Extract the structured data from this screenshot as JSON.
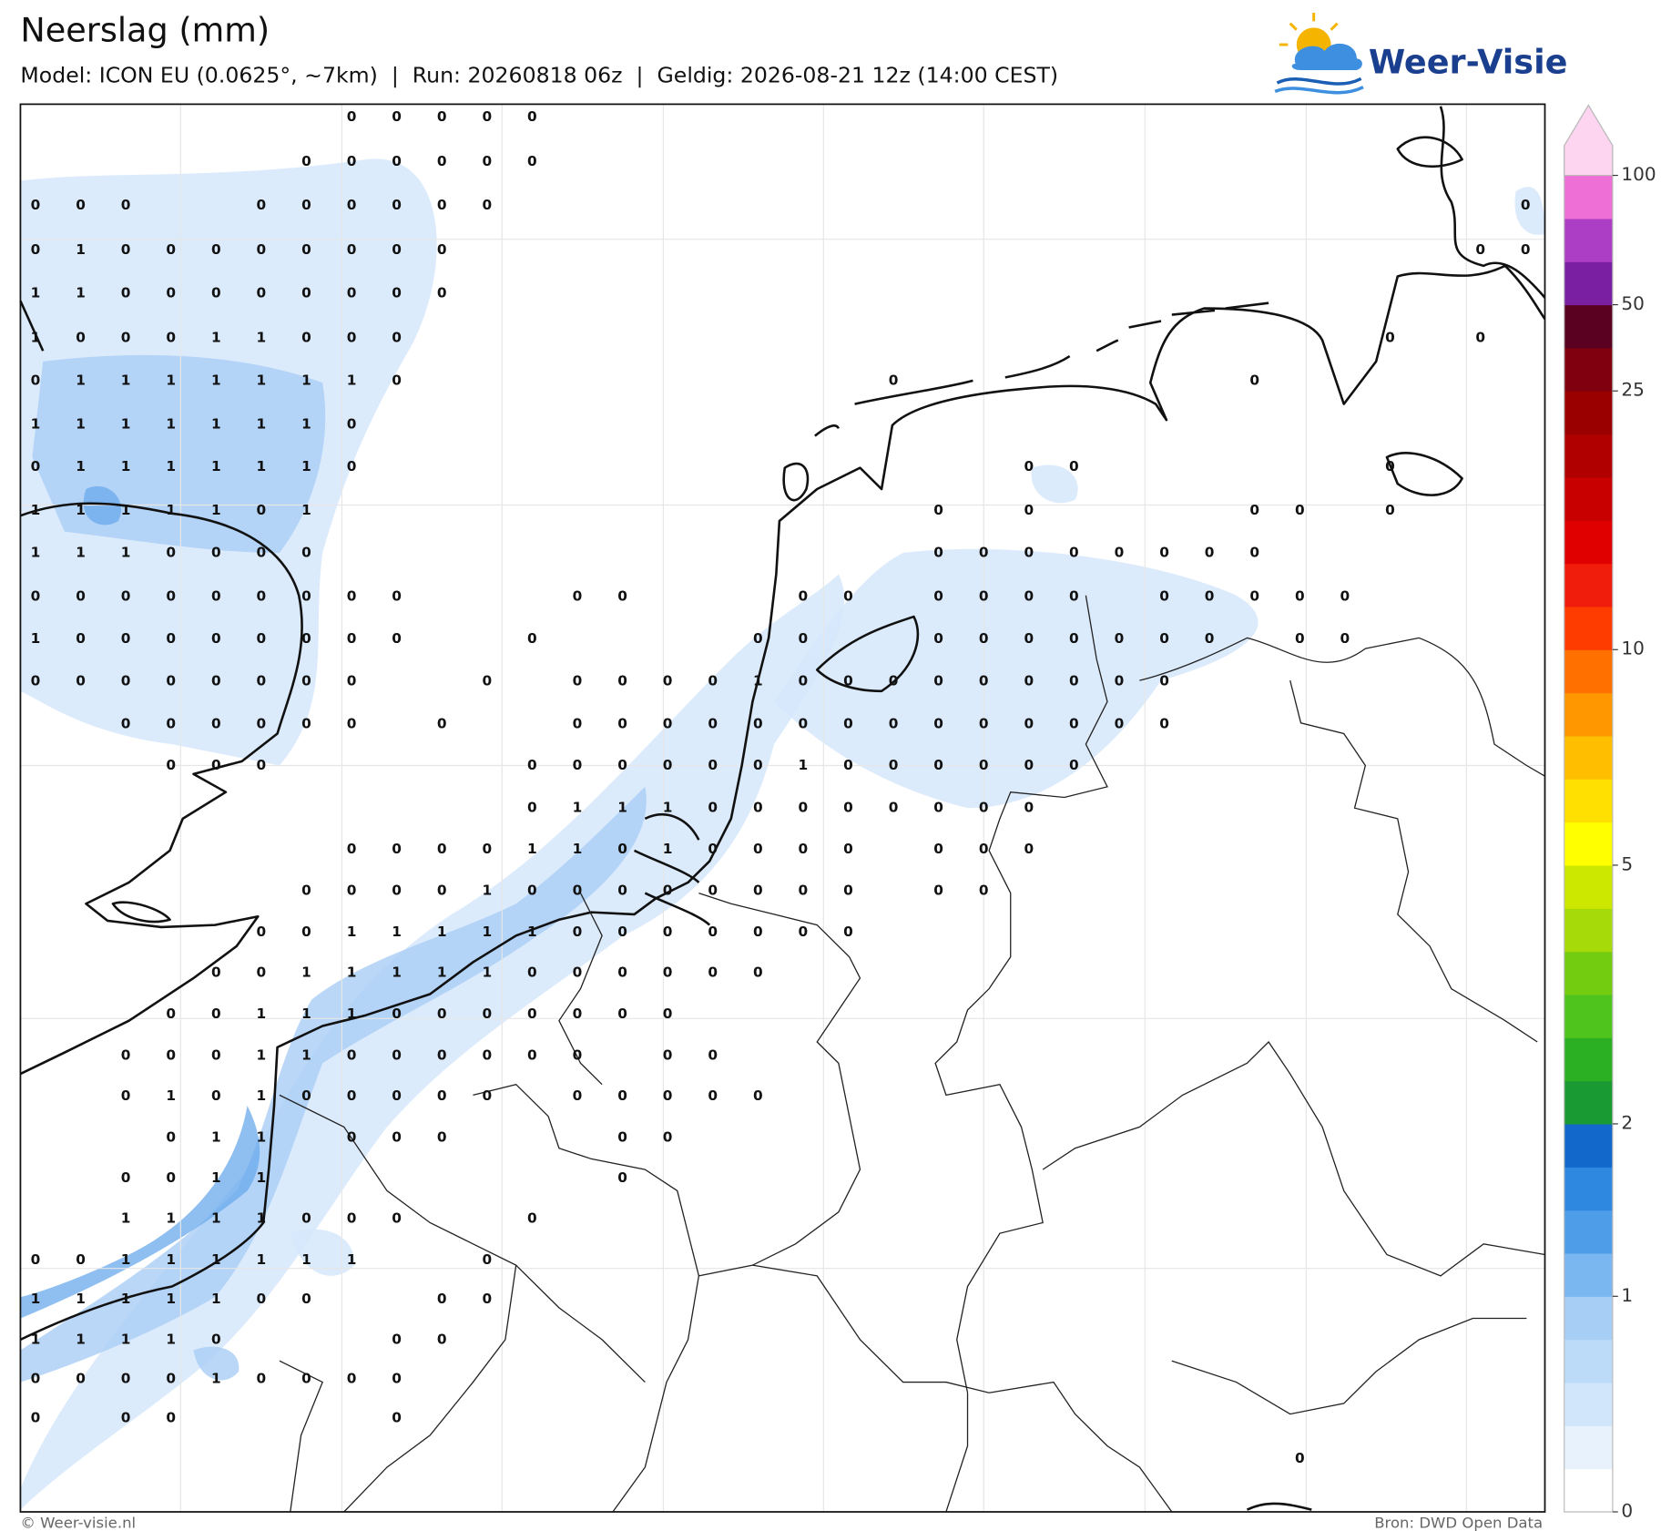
{
  "header": {
    "title": "Neerslag (mm)",
    "subtitle": "Model: ICON EU (0.0625°, ~7km)  |  Run: 20260818 06z  |  Geldig: 2026-08-21 12z (14:00 CEST)"
  },
  "logo": {
    "text": "Weer-Visie"
  },
  "map": {
    "labels": [
      [
        null,
        null,
        null,
        null,
        null,
        null,
        null,
        0,
        0,
        0,
        0,
        0
      ],
      [
        null,
        null,
        null,
        null,
        null,
        null,
        0,
        0,
        0,
        0,
        0,
        0
      ],
      [
        0,
        0,
        0,
        null,
        null,
        0,
        0,
        0,
        0,
        0,
        0,
        null,
        null,
        null,
        null,
        null,
        null,
        null,
        null,
        null,
        null,
        null,
        null,
        null,
        null,
        null,
        null,
        null,
        null,
        null,
        null,
        null,
        null,
        0
      ],
      [
        0,
        1,
        0,
        0,
        0,
        0,
        0,
        0,
        0,
        0,
        null,
        null,
        null,
        null,
        null,
        null,
        null,
        null,
        null,
        null,
        null,
        null,
        null,
        null,
        null,
        null,
        null,
        null,
        null,
        null,
        null,
        null,
        0,
        0
      ],
      [
        1,
        1,
        0,
        0,
        0,
        0,
        0,
        0,
        0,
        0
      ],
      [
        1,
        0,
        0,
        0,
        1,
        1,
        0,
        0,
        0,
        null,
        null,
        null,
        null,
        null,
        null,
        null,
        null,
        null,
        null,
        null,
        null,
        null,
        null,
        null,
        null,
        null,
        null,
        null,
        null,
        null,
        0,
        null,
        0
      ],
      [
        0,
        1,
        1,
        1,
        1,
        1,
        1,
        1,
        0,
        null,
        null,
        null,
        null,
        null,
        null,
        null,
        null,
        null,
        null,
        0,
        null,
        null,
        null,
        null,
        null,
        null,
        null,
        0
      ],
      [
        1,
        1,
        1,
        1,
        1,
        1,
        1,
        0
      ],
      [
        0,
        1,
        1,
        1,
        1,
        1,
        1,
        0,
        null,
        null,
        null,
        null,
        null,
        null,
        null,
        null,
        null,
        null,
        null,
        null,
        null,
        null,
        0,
        0,
        null,
        null,
        null,
        null,
        null,
        null,
        0
      ],
      [
        1,
        1,
        1,
        1,
        1,
        0,
        1,
        null,
        null,
        null,
        null,
        null,
        null,
        null,
        null,
        null,
        null,
        null,
        null,
        null,
        0,
        null,
        0,
        null,
        null,
        null,
        null,
        0,
        0,
        null,
        0
      ],
      [
        1,
        1,
        1,
        0,
        0,
        0,
        0,
        null,
        null,
        null,
        null,
        null,
        null,
        null,
        null,
        null,
        null,
        null,
        null,
        null,
        0,
        0,
        0,
        0,
        0,
        0,
        0,
        0
      ],
      [
        0,
        0,
        0,
        0,
        0,
        0,
        0,
        0,
        0,
        null,
        null,
        null,
        0,
        0,
        null,
        null,
        null,
        0,
        0,
        null,
        0,
        0,
        0,
        0,
        null,
        0,
        0,
        0,
        0,
        0
      ],
      [
        1,
        0,
        0,
        0,
        0,
        0,
        0,
        0,
        0,
        null,
        null,
        0,
        null,
        null,
        null,
        null,
        0,
        0,
        null,
        null,
        0,
        0,
        0,
        0,
        0,
        0,
        0,
        null,
        0,
        0
      ],
      [
        0,
        0,
        0,
        0,
        0,
        0,
        0,
        0,
        null,
        null,
        0,
        null,
        0,
        0,
        0,
        0,
        1,
        0,
        0,
        0,
        0,
        0,
        0,
        0,
        0,
        0
      ],
      [
        null,
        null,
        0,
        0,
        0,
        0,
        0,
        0,
        null,
        0,
        null,
        null,
        0,
        0,
        0,
        0,
        0,
        0,
        0,
        0,
        0,
        0,
        0,
        0,
        0,
        0
      ],
      [
        null,
        null,
        null,
        0,
        0,
        0,
        null,
        null,
        null,
        null,
        null,
        0,
        0,
        0,
        0,
        0,
        0,
        1,
        0,
        0,
        0,
        0,
        0,
        0
      ],
      [
        null,
        null,
        null,
        null,
        null,
        null,
        null,
        null,
        null,
        null,
        null,
        0,
        1,
        1,
        1,
        0,
        0,
        0,
        0,
        0,
        0,
        0,
        0
      ],
      [
        null,
        null,
        null,
        null,
        null,
        null,
        null,
        0,
        0,
        0,
        0,
        1,
        1,
        0,
        1,
        0,
        0,
        0,
        0,
        null,
        0,
        0,
        0
      ],
      [
        null,
        null,
        null,
        null,
        null,
        null,
        0,
        0,
        0,
        0,
        1,
        0,
        0,
        0,
        0,
        0,
        0,
        0,
        0,
        null,
        0,
        0
      ],
      [
        null,
        null,
        null,
        null,
        null,
        0,
        0,
        1,
        1,
        1,
        1,
        1,
        0,
        0,
        0,
        0,
        0,
        0,
        0
      ],
      [
        null,
        null,
        null,
        null,
        0,
        0,
        1,
        1,
        1,
        1,
        1,
        0,
        0,
        0,
        0,
        0,
        0
      ],
      [
        null,
        null,
        null,
        0,
        0,
        1,
        1,
        1,
        0,
        0,
        0,
        0,
        0,
        0,
        0
      ],
      [
        null,
        null,
        0,
        0,
        0,
        1,
        1,
        0,
        0,
        0,
        0,
        0,
        0,
        null,
        0,
        0
      ],
      [
        null,
        null,
        0,
        1,
        0,
        1,
        0,
        0,
        0,
        0,
        0,
        null,
        0,
        0,
        0,
        0,
        0
      ],
      [
        null,
        null,
        null,
        0,
        1,
        1,
        null,
        0,
        0,
        0,
        null,
        null,
        null,
        0,
        0
      ],
      [
        null,
        null,
        0,
        0,
        1,
        1,
        null,
        null,
        null,
        null,
        null,
        null,
        null,
        0
      ],
      [
        null,
        null,
        1,
        1,
        1,
        1,
        0,
        0,
        0,
        null,
        null,
        0
      ],
      [
        0,
        0,
        1,
        1,
        1,
        1,
        1,
        1,
        null,
        null,
        0
      ],
      [
        1,
        1,
        1,
        1,
        1,
        0,
        0,
        null,
        null,
        0,
        0
      ],
      [
        1,
        1,
        1,
        1,
        0,
        null,
        null,
        null,
        0,
        0
      ],
      [
        0,
        0,
        0,
        0,
        1,
        0,
        0,
        0,
        0
      ],
      [
        0,
        null,
        0,
        0,
        null,
        null,
        null,
        null,
        0
      ],
      [
        null,
        null,
        null,
        null,
        null,
        null,
        null,
        null,
        null,
        null,
        null,
        null,
        null,
        null,
        null,
        null,
        null,
        null,
        null,
        null,
        null,
        null,
        null,
        null,
        null,
        null,
        null,
        null,
        0
      ]
    ]
  },
  "colorbar": {
    "ticks": [
      0,
      1,
      2,
      5,
      10,
      25,
      50,
      100
    ],
    "colors": [
      "#ffffff",
      "#e8f2fd",
      "#d2e6fb",
      "#bcdbf8",
      "#a7cff6",
      "#7ab6f0",
      "#4d9de9",
      "#2e88e0",
      "#1368cc",
      "#1a9a32",
      "#2bb024",
      "#4fc41c",
      "#74cc10",
      "#a6da08",
      "#cde800",
      "#ffff00",
      "#ffe000",
      "#ffbf00",
      "#ff9800",
      "#ff7000",
      "#ff3c00",
      "#f01c0c",
      "#e00000",
      "#c80000",
      "#b00000",
      "#9a0000",
      "#800010",
      "#5a0020",
      "#7b1fa2",
      "#ab3ec4",
      "#ee6fd6"
    ],
    "extend_color": "#fdd5f0"
  },
  "footer": {
    "left": "© Weer-visie.nl",
    "right": "Bron: DWD Open Data"
  }
}
